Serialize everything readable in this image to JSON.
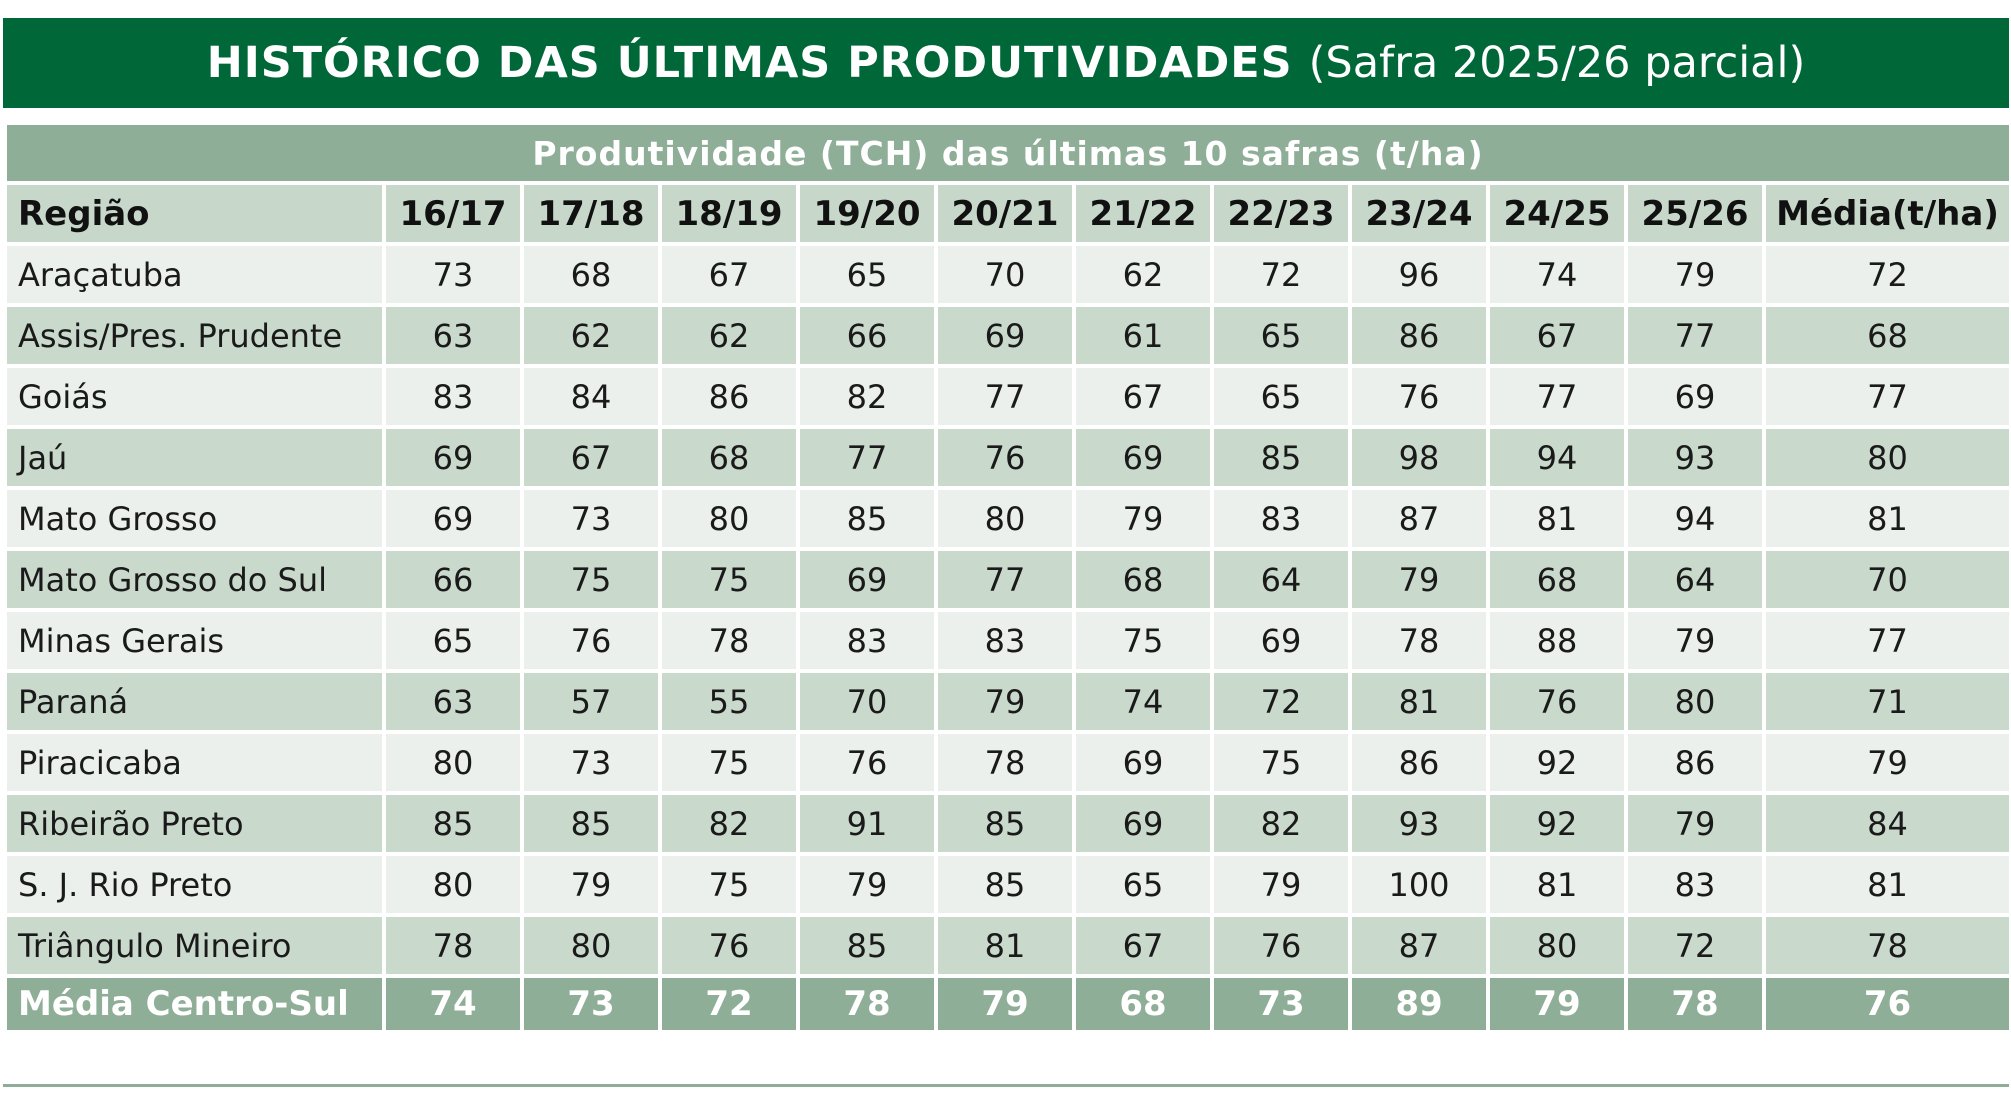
{
  "title": {
    "main": "HISTÓRICO DAS ÚLTIMAS PRODUTIVIDADES",
    "sub": "(Safra 2025/26 parcial)"
  },
  "table": {
    "subtitle": "Produtividade (TCH) das últimas 10 safras (t/ha)",
    "columns": [
      "Região",
      "16/17",
      "17/18",
      "18/19",
      "19/20",
      "20/21",
      "21/22",
      "22/23",
      "23/24",
      "24/25",
      "25/26",
      "Média(t/ha)"
    ],
    "rows": [
      [
        "Araçatuba",
        "73",
        "68",
        "67",
        "65",
        "70",
        "62",
        "72",
        "96",
        "74",
        "79",
        "72"
      ],
      [
        "Assis/Pres. Prudente",
        "63",
        "62",
        "62",
        "66",
        "69",
        "61",
        "65",
        "86",
        "67",
        "77",
        "68"
      ],
      [
        "Goiás",
        "83",
        "84",
        "86",
        "82",
        "77",
        "67",
        "65",
        "76",
        "77",
        "69",
        "77"
      ],
      [
        "Jaú",
        "69",
        "67",
        "68",
        "77",
        "76",
        "69",
        "85",
        "98",
        "94",
        "93",
        "80"
      ],
      [
        "Mato Grosso",
        "69",
        "73",
        "80",
        "85",
        "80",
        "79",
        "83",
        "87",
        "81",
        "94",
        "81"
      ],
      [
        "Mato Grosso do Sul",
        "66",
        "75",
        "75",
        "69",
        "77",
        "68",
        "64",
        "79",
        "68",
        "64",
        "70"
      ],
      [
        "Minas Gerais",
        "65",
        "76",
        "78",
        "83",
        "83",
        "75",
        "69",
        "78",
        "88",
        "79",
        "77"
      ],
      [
        "Paraná",
        "63",
        "57",
        "55",
        "70",
        "79",
        "74",
        "72",
        "81",
        "76",
        "80",
        "71"
      ],
      [
        "Piracicaba",
        "80",
        "73",
        "75",
        "76",
        "78",
        "69",
        "75",
        "86",
        "92",
        "86",
        "79"
      ],
      [
        "Ribeirão Preto",
        "85",
        "85",
        "82",
        "91",
        "85",
        "69",
        "82",
        "93",
        "92",
        "79",
        "84"
      ],
      [
        "S. J. Rio Preto",
        "80",
        "79",
        "75",
        "79",
        "85",
        "65",
        "79",
        "100",
        "81",
        "83",
        "81"
      ],
      [
        "Triângulo Mineiro",
        "78",
        "80",
        "76",
        "85",
        "81",
        "67",
        "76",
        "87",
        "80",
        "72",
        "78"
      ]
    ],
    "total": [
      "Média Centro-Sul",
      "74",
      "73",
      "72",
      "78",
      "79",
      "68",
      "73",
      "89",
      "79",
      "78",
      "76"
    ]
  },
  "colors": {
    "title_bg": "#006838",
    "subtitle_bg": "#8eae97",
    "header_bg": "#c7d8cb",
    "row_light": "#ebf0ec",
    "row_dark": "#c9d9cc",
    "total_bg": "#8eae97"
  }
}
